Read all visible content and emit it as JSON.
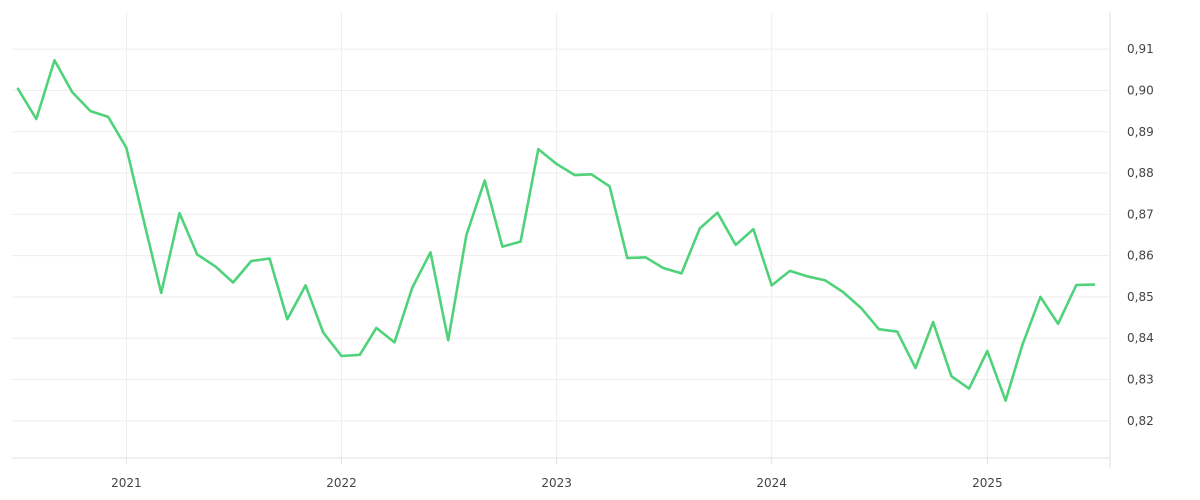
{
  "colors": {
    "background": "#ffffff",
    "line": "#4fd27a",
    "grid": "#eeeeee",
    "axis": "#e2e2e2",
    "text": "#444444"
  },
  "chart_data": {
    "type": "line",
    "title": "",
    "xlabel": "",
    "ylabel": "",
    "y_axis_side": "right",
    "grid": true,
    "legend": "none",
    "x_tick_labels": [
      "2021",
      "2022",
      "2023",
      "2024",
      "2025"
    ],
    "y_tick_labels": [
      "0,82",
      "0,83",
      "0,84",
      "0,85",
      "0,86",
      "0,87",
      "0,88",
      "0,89",
      "0,90",
      "0,91"
    ],
    "y_ticks": [
      0.82,
      0.83,
      0.84,
      0.85,
      0.86,
      0.87,
      0.88,
      0.89,
      0.9,
      0.91
    ],
    "xlim": [
      "2020-07-01",
      "2025-07-01"
    ],
    "ylim": [
      0.811,
      0.919
    ],
    "series": [
      {
        "x": [
          "2020-07-01",
          "2020-08-01",
          "2020-09-01",
          "2020-10-01",
          "2020-11-01",
          "2020-12-01",
          "2021-01-01",
          "2021-02-01",
          "2021-03-01",
          "2021-04-01",
          "2021-05-01",
          "2021-06-01",
          "2021-07-01",
          "2021-08-01",
          "2021-09-01",
          "2021-10-01",
          "2021-11-01",
          "2021-12-01",
          "2022-01-01",
          "2022-02-01",
          "2022-03-01",
          "2022-04-01",
          "2022-05-01",
          "2022-06-01",
          "2022-07-01",
          "2022-08-01",
          "2022-09-01",
          "2022-10-01",
          "2022-11-01",
          "2022-12-01",
          "2023-01-01",
          "2023-02-01",
          "2023-03-01",
          "2023-04-01",
          "2023-05-01",
          "2023-06-01",
          "2023-07-01",
          "2023-08-01",
          "2023-09-01",
          "2023-10-01",
          "2023-11-01",
          "2023-12-01",
          "2024-01-01",
          "2024-02-01",
          "2024-03-01",
          "2024-04-01",
          "2024-05-01",
          "2024-06-01",
          "2024-07-01",
          "2024-08-01",
          "2024-09-01",
          "2024-10-01",
          "2024-11-01",
          "2024-12-01",
          "2025-01-01",
          "2025-02-01",
          "2025-03-01",
          "2025-04-01",
          "2025-05-01",
          "2025-06-01",
          "2025-07-01"
        ],
        "y": [
          0.9004,
          0.8931,
          0.9073,
          0.8996,
          0.895,
          0.8936,
          0.8861,
          0.8675,
          0.851,
          0.8703,
          0.8603,
          0.8574,
          0.8535,
          0.8587,
          0.8593,
          0.8446,
          0.8528,
          0.8414,
          0.8357,
          0.836,
          0.8425,
          0.839,
          0.8522,
          0.8608,
          0.8395,
          0.865,
          0.8782,
          0.8622,
          0.8634,
          0.8858,
          0.8822,
          0.8795,
          0.8797,
          0.8768,
          0.8594,
          0.8596,
          0.857,
          0.8557,
          0.8666,
          0.8704,
          0.8626,
          0.8664,
          0.8528,
          0.8563,
          0.855,
          0.854,
          0.8512,
          0.8473,
          0.8422,
          0.8416,
          0.8328,
          0.8439,
          0.8308,
          0.8278,
          0.8369,
          0.8249,
          0.8382,
          0.85,
          0.8435,
          0.8529,
          0.853
        ]
      }
    ]
  }
}
